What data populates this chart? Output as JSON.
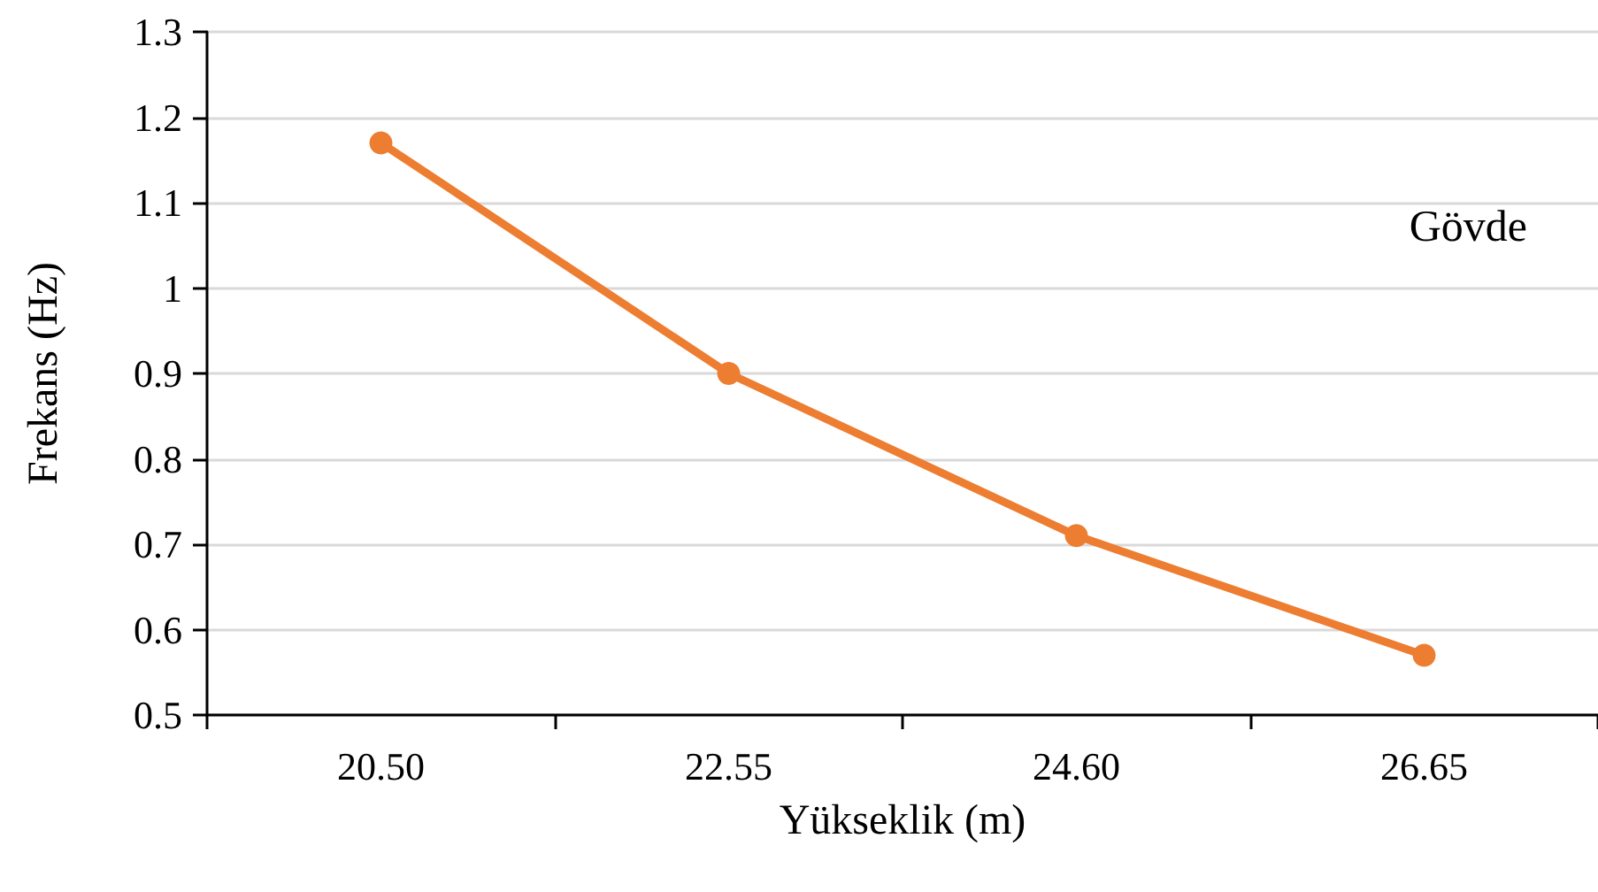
{
  "chart_data": {
    "type": "line",
    "categories": [
      "20.50",
      "22.55",
      "24.60",
      "26.65"
    ],
    "series": [
      {
        "color": "#ed7d31",
        "values": [
          1.17,
          0.9,
          0.71,
          0.57
        ]
      }
    ],
    "xlabel": "Yükseklik (m)",
    "ylabel": "Frekans (Hz)",
    "annotations": [
      "Gövde"
    ],
    "ylim": [
      0.5,
      1.3
    ],
    "yticks": [
      0.5,
      0.6,
      0.7,
      0.8,
      0.9,
      1,
      1.1,
      1.2,
      1.3
    ],
    "grid": "y",
    "marker": "circle",
    "line_style": "solid"
  }
}
